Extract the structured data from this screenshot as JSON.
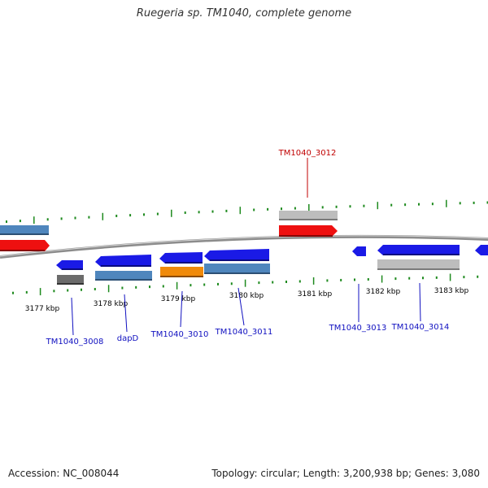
{
  "title": "Ruegeria sp. TM1040, complete genome",
  "footer": {
    "accession": "Accession: NC_008044",
    "stats": "Topology: circular; Length: 3,200,938 bp; Genes: 3,080"
  },
  "colors": {
    "backbone": "#8c8c8c",
    "tick": "#1e8a1e",
    "label_blue": "#1010c0",
    "label_red": "#c00000",
    "blue": "#1a1ae6",
    "red": "#ee1010",
    "steel": "#4f86bd",
    "gray_light": "#bdbdbd",
    "gray_dark": "#6b6b6b",
    "orange": "#f08a0a"
  },
  "ticks": {
    "labels": [
      "3177 kbp",
      "3178 kbp",
      "3179 kbp",
      "3180 kbp",
      "3181 kbp",
      "3182 kbp",
      "3183 kbp"
    ]
  },
  "genes": [
    {
      "id": "TM1040_3008",
      "label": "TM1040_3008",
      "label_color": "blue"
    },
    {
      "id": "dapD",
      "label": "dapD",
      "label_color": "blue"
    },
    {
      "id": "TM1040_3010",
      "label": "TM1040_3010",
      "label_color": "blue"
    },
    {
      "id": "TM1040_3011",
      "label": "TM1040_3011",
      "label_color": "blue"
    },
    {
      "id": "TM1040_3012",
      "label": "TM1040_3012",
      "label_color": "red"
    },
    {
      "id": "TM1040_3013",
      "label": "TM1040_3013",
      "label_color": "blue"
    },
    {
      "id": "TM1040_3014",
      "label": "TM1040_3014",
      "label_color": "blue"
    }
  ]
}
